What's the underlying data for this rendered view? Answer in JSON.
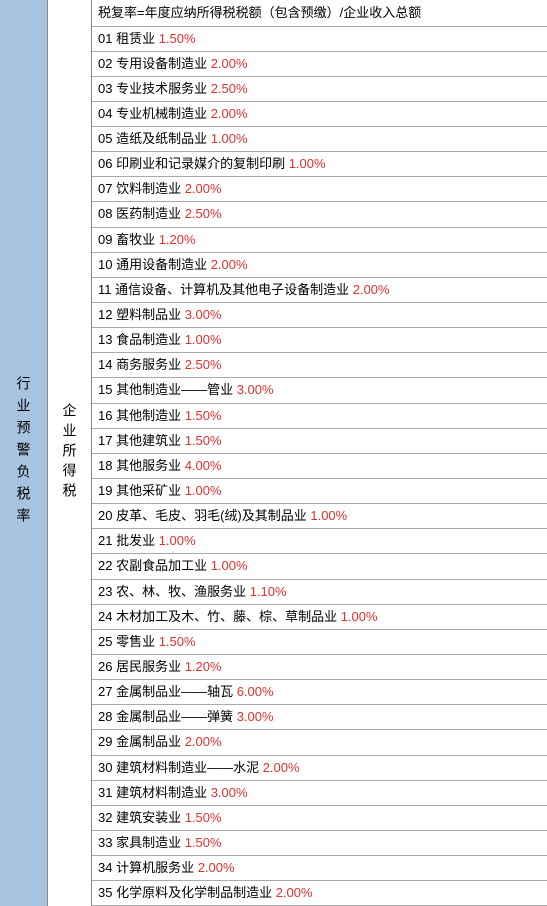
{
  "leftCol": {
    "text": "行业预警负税率",
    "bgColor": "#a8c3df"
  },
  "midCol": {
    "text": "企业所得税",
    "bgColor": "#ffffff"
  },
  "headerFormula": "税复率=年度应纳所得税税额（包含预缴）/企业收入总额",
  "rateColor": "#e03030",
  "textColor": "#000000",
  "borderColor": "#aaaaaa",
  "rows": [
    {
      "num": "01",
      "label": "租赁业",
      "rate": "1.50%"
    },
    {
      "num": "02",
      "label": "专用设备制造业",
      "rate": "2.00%"
    },
    {
      "num": "03",
      "label": "专业技术服务业",
      "rate": "2.50%"
    },
    {
      "num": "04",
      "label": "专业机械制造业",
      "rate": "2.00%"
    },
    {
      "num": "05",
      "label": "造纸及纸制品业",
      "rate": "1.00%"
    },
    {
      "num": "06",
      "label": "印刷业和记录媒介的复制印刷",
      "rate": "1.00%"
    },
    {
      "num": "07",
      "label": "饮料制造业",
      "rate": "2.00%"
    },
    {
      "num": "08",
      "label": "医药制造业",
      "rate": "2.50%"
    },
    {
      "num": "09",
      "label": "畜牧业",
      "rate": "1.20%"
    },
    {
      "num": "10",
      "label": "通用设备制造业",
      "rate": "2.00%"
    },
    {
      "num": "11",
      "label": "通信设备、计算机及其他电子设备制造业",
      "rate": "2.00%"
    },
    {
      "num": "12",
      "label": "塑料制品业",
      "rate": "3.00%"
    },
    {
      "num": "13",
      "label": "食品制造业",
      "rate": "1.00%"
    },
    {
      "num": "14",
      "label": "商务服务业",
      "rate": "2.50%"
    },
    {
      "num": "15",
      "label": "其他制造业——管业",
      "rate": "3.00%"
    },
    {
      "num": "16",
      "label": "其他制造业",
      "rate": "1.50%"
    },
    {
      "num": "17",
      "label": "其他建筑业",
      "rate": "1.50%"
    },
    {
      "num": "18",
      "label": "其他服务业",
      "rate": "4.00%"
    },
    {
      "num": "19",
      "label": "其他采矿业",
      "rate": "1.00%"
    },
    {
      "num": "20",
      "label": "皮革、毛皮、羽毛(绒)及其制品业",
      "rate": "1.00%"
    },
    {
      "num": "21",
      "label": "批发业",
      "rate": "1.00%"
    },
    {
      "num": "22",
      "label": "农副食品加工业",
      "rate": "1.00%"
    },
    {
      "num": "23",
      "label": "农、林、牧、渔服务业",
      "rate": "1.10%"
    },
    {
      "num": "24",
      "label": "木材加工及木、竹、藤、棕、草制品业",
      "rate": "1.00%"
    },
    {
      "num": "25",
      "label": "零售业",
      "rate": "1.50%"
    },
    {
      "num": "26",
      "label": "居民服务业",
      "rate": "1.20%"
    },
    {
      "num": "27",
      "label": "金属制品业——轴瓦",
      "rate": "6.00%"
    },
    {
      "num": "28",
      "label": "金属制品业——弹簧",
      "rate": "3.00%"
    },
    {
      "num": "29",
      "label": "金属制品业",
      "rate": "2.00%"
    },
    {
      "num": "30",
      "label": "建筑材料制造业——水泥",
      "rate": "2.00%"
    },
    {
      "num": "31",
      "label": "建筑材料制造业",
      "rate": "3.00%"
    },
    {
      "num": "32",
      "label": "建筑安装业",
      "rate": "1.50%"
    },
    {
      "num": "33",
      "label": "家具制造业",
      "rate": "1.50%"
    },
    {
      "num": "34",
      "label": "计算机服务业",
      "rate": "2.00%"
    },
    {
      "num": "35",
      "label": "化学原料及化学制品制造业",
      "rate": "2.00%"
    }
  ]
}
